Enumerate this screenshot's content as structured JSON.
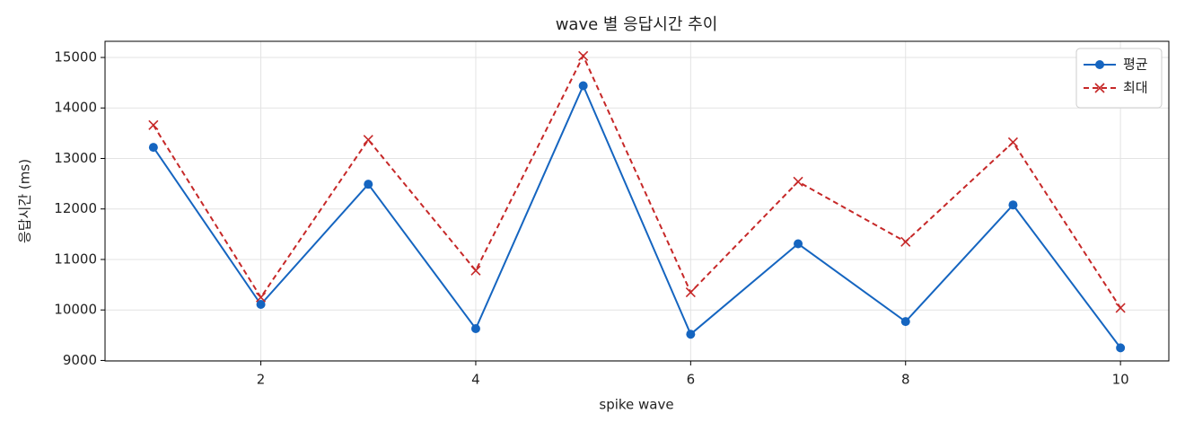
{
  "chart_data": {
    "type": "line",
    "title": "wave 별 응답시간 추이",
    "xlabel": "spike wave",
    "ylabel": "응답시간 (ms)",
    "x": [
      1,
      2,
      3,
      4,
      5,
      6,
      7,
      8,
      9,
      10
    ],
    "series": [
      {
        "name": "평균",
        "color": "#1565c0",
        "marker": "o",
        "dash": false,
        "values": [
          13220,
          10110,
          12490,
          9630,
          14440,
          9520,
          11310,
          9770,
          12080,
          9250
        ]
      },
      {
        "name": "최대",
        "color": "#c62828",
        "marker": "x",
        "dash": true,
        "values": [
          13660,
          10250,
          13370,
          10780,
          15030,
          10350,
          12540,
          11350,
          13320,
          10040
        ]
      }
    ],
    "xlim": [
      0.55,
      10.45
    ],
    "xticks": [
      2,
      4,
      6,
      8,
      10
    ],
    "ylim": [
      8990,
      15320
    ],
    "yticks": [
      9000,
      10000,
      11000,
      12000,
      13000,
      14000,
      15000
    ],
    "grid": true,
    "legend": "upper right"
  }
}
